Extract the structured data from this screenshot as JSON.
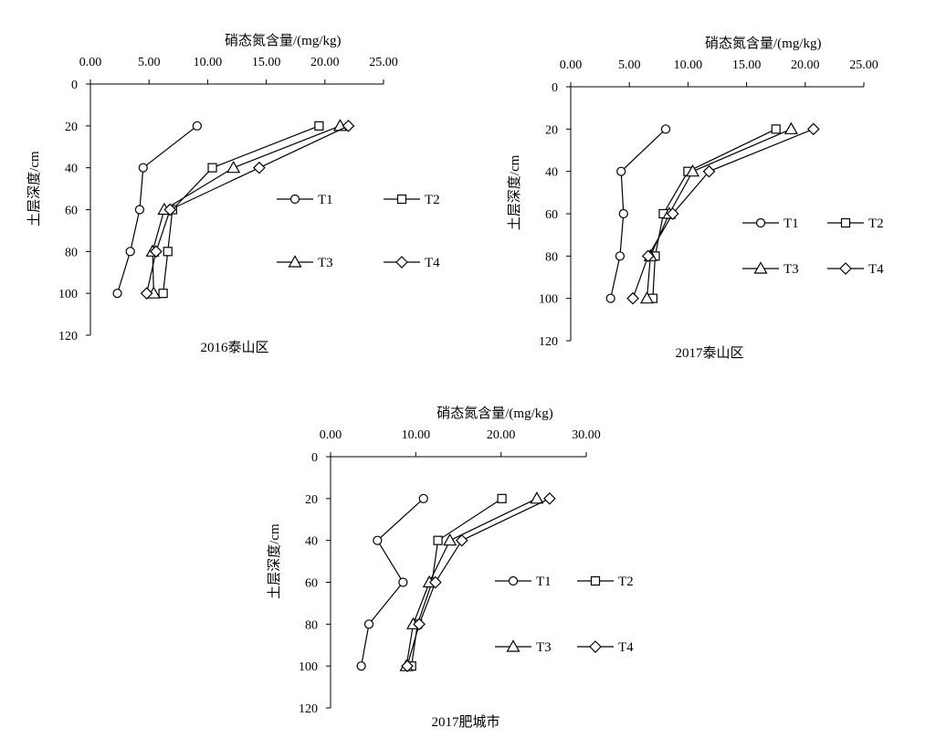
{
  "chart_data": [
    {
      "type": "line",
      "caption": "2016泰山区",
      "xlabel": "硝态氮含量/(mg/kg)",
      "ylabel": "土层深度/cm",
      "xlim": [
        0,
        25
      ],
      "ylim": [
        0,
        120
      ],
      "x_ticks": [
        "0.00",
        "5.00",
        "10.00",
        "15.00",
        "20.00",
        "25.00"
      ],
      "y_ticks": [
        "0",
        "20",
        "40",
        "60",
        "80",
        "100",
        "120"
      ],
      "depths": [
        20,
        40,
        60,
        80,
        100
      ],
      "series": [
        {
          "name": "T1",
          "marker": "circle",
          "values": [
            9.1,
            4.5,
            4.2,
            3.4,
            2.3
          ]
        },
        {
          "name": "T2",
          "marker": "square",
          "values": [
            19.5,
            10.4,
            7.0,
            6.6,
            6.2
          ]
        },
        {
          "name": "T3",
          "marker": "triangle",
          "values": [
            21.3,
            12.2,
            6.3,
            5.3,
            5.4
          ]
        },
        {
          "name": "T4",
          "marker": "diamond",
          "values": [
            22.0,
            14.4,
            6.8,
            5.6,
            4.8
          ]
        }
      ]
    },
    {
      "type": "line",
      "caption": "2017泰山区",
      "xlabel": "硝态氮含量/(mg/kg)",
      "ylabel": "土层深度/cm",
      "xlim": [
        0,
        25
      ],
      "ylim": [
        0,
        120
      ],
      "x_ticks": [
        "0.00",
        "5.00",
        "10.00",
        "15.00",
        "20.00",
        "25.00"
      ],
      "y_ticks": [
        "0",
        "20",
        "40",
        "60",
        "80",
        "100",
        "120"
      ],
      "depths": [
        20,
        40,
        60,
        80,
        100
      ],
      "series": [
        {
          "name": "T1",
          "marker": "circle",
          "values": [
            8.1,
            4.3,
            4.5,
            4.2,
            3.4
          ]
        },
        {
          "name": "T2",
          "marker": "square",
          "values": [
            17.5,
            10.0,
            7.9,
            7.2,
            7.0
          ]
        },
        {
          "name": "T3",
          "marker": "triangle",
          "values": [
            18.8,
            10.4,
            8.4,
            6.8,
            6.5
          ]
        },
        {
          "name": "T4",
          "marker": "diamond",
          "values": [
            20.7,
            11.8,
            8.7,
            6.6,
            5.3
          ]
        }
      ]
    },
    {
      "type": "line",
      "caption": "2017肥城市",
      "xlabel": "硝态氮含量/(mg/kg)",
      "ylabel": "土层深度/cm",
      "xlim": [
        0,
        30
      ],
      "ylim": [
        0,
        120
      ],
      "x_ticks": [
        "0.00",
        "10.00",
        "20.00",
        "30.00"
      ],
      "y_ticks": [
        "0",
        "20",
        "40",
        "60",
        "80",
        "100",
        "120"
      ],
      "depths": [
        20,
        40,
        60,
        80,
        100
      ],
      "series": [
        {
          "name": "T1",
          "marker": "circle",
          "values": [
            10.9,
            5.5,
            8.5,
            4.5,
            3.6
          ]
        },
        {
          "name": "T2",
          "marker": "square",
          "values": [
            20.1,
            12.6,
            11.9,
            10.2,
            9.5
          ]
        },
        {
          "name": "T3",
          "marker": "triangle",
          "values": [
            24.2,
            14.0,
            11.6,
            9.7,
            8.9
          ]
        },
        {
          "name": "T4",
          "marker": "diamond",
          "values": [
            25.7,
            15.4,
            12.3,
            10.4,
            9.0
          ]
        }
      ]
    }
  ]
}
